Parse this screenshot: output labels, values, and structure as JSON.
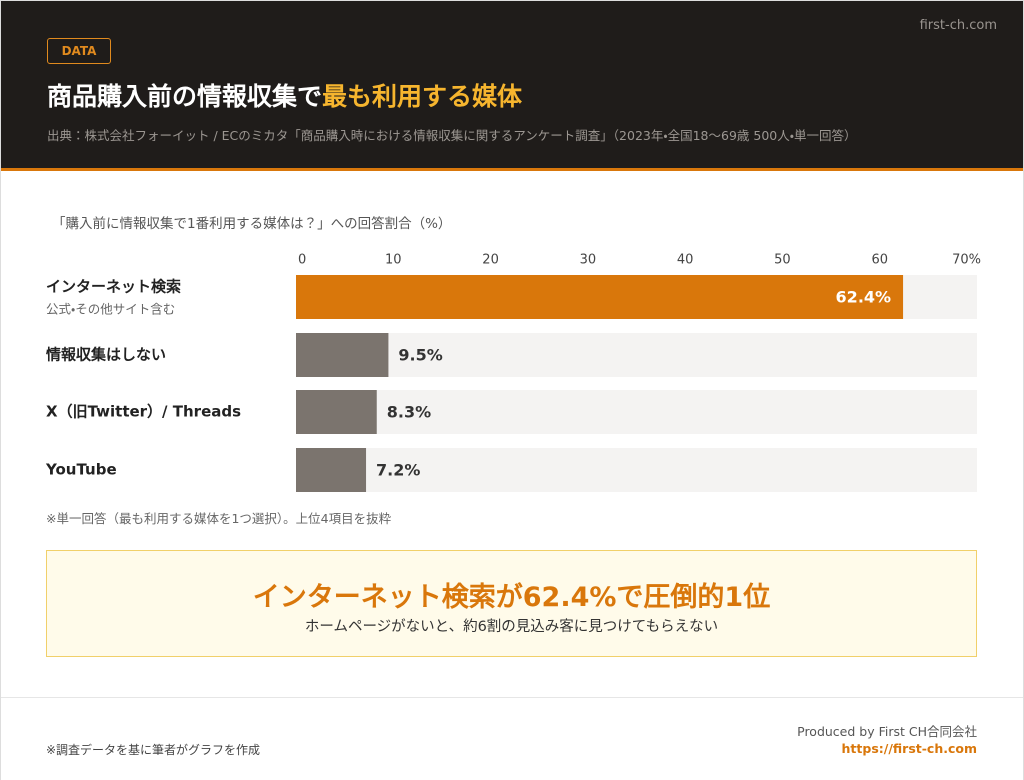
{
  "header": {
    "badge": "DATA",
    "site": "first-ch.com",
    "title_lead": "商品購入前の情報収集で",
    "title_highlight": "最も利用する媒体",
    "source": "出典：株式会社フォーイット / ECのミカタ「商品購入時における情報収集に関するアンケート調査」（2023年・全国18〜69歳 500人・単一回答）"
  },
  "chart_data": {
    "type": "bar",
    "orientation": "horizontal",
    "title": "「購入前に情報収集で1番利用する媒体は？」への回答割合（%）",
    "categories": [
      "インターネット検索",
      "情報収集はしない",
      "X（旧Twitter）/ Threads",
      "YouTube"
    ],
    "category_notes": [
      "公式・その他サイト含む",
      null,
      null,
      null
    ],
    "values": [
      62.4,
      9.5,
      8.3,
      7.2
    ],
    "value_labels": [
      "62.4%",
      "9.5%",
      "8.3%",
      "7.2%"
    ],
    "colors": [
      "#d9770b",
      "#7b746e",
      "#7b746e",
      "#7b746e"
    ],
    "xlim": [
      0,
      70
    ],
    "xticks": [
      0,
      10,
      20,
      30,
      40,
      50,
      60,
      {
        "value": 70,
        "label": "70%"
      }
    ],
    "note": "※単一回答（最も利用する媒体を1つ選択）。上位4項目を抜粋"
  },
  "callout": {
    "headline": "インターネット検索が62.4%で圧倒的1位",
    "text": "ホームページがないと、約6割の見込み客に見つけてもらえない"
  },
  "footer": {
    "left_note": "※調査データを基に筆者がグラフを作成",
    "producer": "Produced by First CH合同会社",
    "url": "https://first-ch.com"
  }
}
